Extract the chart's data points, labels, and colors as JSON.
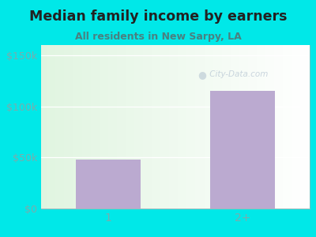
{
  "title": "Median family income by earners",
  "subtitle": "All residents in New Sarpy, LA",
  "categories": [
    "1",
    "2+"
  ],
  "values": [
    48000,
    115000
  ],
  "bar_color": "#bbaad0",
  "yticks": [
    0,
    50000,
    100000,
    150000
  ],
  "ytick_labels": [
    "$0",
    "$50k",
    "$100k",
    "$150k"
  ],
  "ylim": [
    0,
    160000
  ],
  "background_outer": "#00e8e8",
  "title_color": "#222222",
  "subtitle_color": "#4a8080",
  "tick_color": "#7aadad",
  "watermark": " City-Data.com",
  "title_fontsize": 12.5,
  "subtitle_fontsize": 9,
  "bar_width": 0.48
}
